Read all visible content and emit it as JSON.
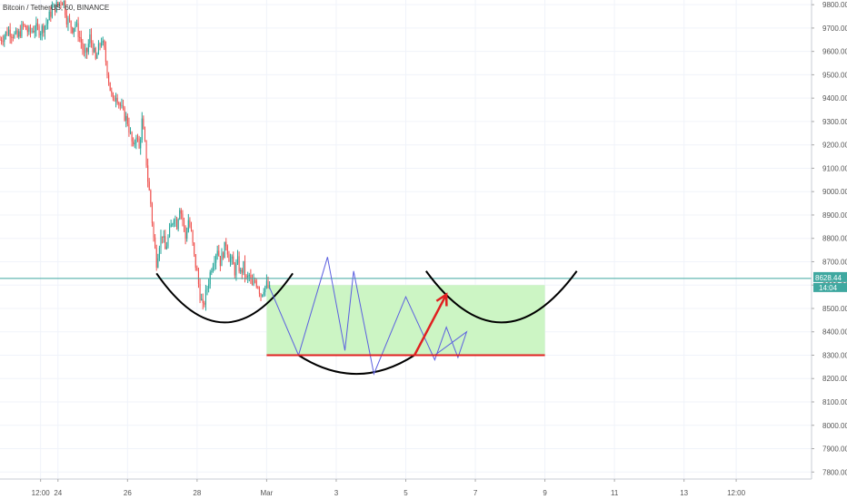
{
  "chart_data": {
    "type": "candlestick",
    "symbol_label": "Bitcoin / TetherUS, 60, BINANCE",
    "y_ticks": [
      9800,
      9700,
      9600,
      9500,
      9400,
      9300,
      9200,
      9100,
      9000,
      8900,
      8800,
      8700,
      8600,
      8500,
      8400,
      8300,
      8200,
      8100,
      8000,
      7900,
      7800
    ],
    "y_tick_labels": [
      "9800.00",
      "9700.00",
      "9600.00",
      "9500.00",
      "9400.00",
      "9300.00",
      "9200.00",
      "9100.00",
      "9000.00",
      "8900.00",
      "8800.00",
      "8700.00",
      "8600.00",
      "8500.00",
      "8400.00",
      "8300.00",
      "8200.00",
      "8100.00",
      "8000.00",
      "7900.00",
      "7800.00"
    ],
    "ylim": [
      7770,
      9820
    ],
    "x_tick_labels": [
      "12:00",
      "24",
      "26",
      "28",
      "Mar",
      "3",
      "5",
      "7",
      "9",
      "11",
      "13",
      "12:00"
    ],
    "x_tick_hours": [
      -12,
      0,
      48,
      96,
      144,
      192,
      240,
      288,
      336,
      384,
      432,
      468
    ],
    "xlim_hours": [
      -40,
      520
    ],
    "current_price": 8628.44,
    "current_price_label": "8628.44",
    "countdown_label": "14:04",
    "price_path": [
      [
        -40,
        9650
      ],
      [
        -34,
        9690
      ],
      [
        -28,
        9660
      ],
      [
        -24,
        9710
      ],
      [
        -20,
        9680
      ],
      [
        -16,
        9700
      ],
      [
        -12,
        9690
      ],
      [
        -8,
        9720
      ],
      [
        -4,
        9780
      ],
      [
        0,
        9800
      ],
      [
        2,
        9820
      ],
      [
        4,
        9810
      ],
      [
        6,
        9740
      ],
      [
        10,
        9700
      ],
      [
        12,
        9720
      ],
      [
        16,
        9640
      ],
      [
        18,
        9580
      ],
      [
        20,
        9600
      ],
      [
        22,
        9660
      ],
      [
        24,
        9620
      ],
      [
        26,
        9560
      ],
      [
        28,
        9610
      ],
      [
        30,
        9650
      ],
      [
        32,
        9600
      ],
      [
        34,
        9520
      ],
      [
        36,
        9440
      ],
      [
        38,
        9380
      ],
      [
        40,
        9420
      ],
      [
        44,
        9350
      ],
      [
        48,
        9300
      ],
      [
        50,
        9240
      ],
      [
        52,
        9180
      ],
      [
        54,
        9250
      ],
      [
        56,
        9180
      ],
      [
        58,
        9300
      ],
      [
        60,
        9200
      ],
      [
        62,
        9050
      ],
      [
        64,
        8950
      ],
      [
        66,
        8800
      ],
      [
        68,
        8700
      ],
      [
        70,
        8780
      ],
      [
        72,
        8820
      ],
      [
        74,
        8750
      ],
      [
        76,
        8800
      ],
      [
        78,
        8850
      ],
      [
        80,
        8900
      ],
      [
        82,
        8860
      ],
      [
        84,
        8940
      ],
      [
        86,
        8880
      ],
      [
        88,
        8800
      ],
      [
        90,
        8880
      ],
      [
        92,
        8820
      ],
      [
        94,
        8720
      ],
      [
        96,
        8650
      ],
      [
        98,
        8560
      ],
      [
        100,
        8500
      ],
      [
        102,
        8560
      ],
      [
        104,
        8620
      ],
      [
        106,
        8680
      ],
      [
        108,
        8720
      ],
      [
        110,
        8760
      ],
      [
        112,
        8700
      ],
      [
        114,
        8740
      ],
      [
        116,
        8780
      ],
      [
        118,
        8720
      ],
      [
        120,
        8700
      ],
      [
        122,
        8660
      ],
      [
        124,
        8700
      ],
      [
        126,
        8650
      ],
      [
        128,
        8680
      ],
      [
        130,
        8620
      ],
      [
        132,
        8640
      ],
      [
        134,
        8590
      ],
      [
        136,
        8620
      ],
      [
        138,
        8600
      ],
      [
        140,
        8560
      ],
      [
        142,
        8590
      ],
      [
        144,
        8600
      ],
      [
        146,
        8580
      ]
    ],
    "annotations": {
      "target_zone": {
        "x_start": 144,
        "x_end": 336,
        "y_low": 8300,
        "y_high": 8600,
        "color": "#ccf5c4"
      },
      "support_line": {
        "x_start": 144,
        "x_end": 336,
        "y": 8300,
        "color": "#e02020"
      },
      "bowl_1": {
        "x_start": 68,
        "x_end": 162,
        "y_top": 8650,
        "y_bottom": 8440,
        "color": "#000000"
      },
      "bowl_2": {
        "x_start": 166,
        "x_end": 246,
        "y_top": 8300,
        "y_bottom": 8220,
        "color": "#000000"
      },
      "bowl_3": {
        "x_start": 254,
        "x_end": 358,
        "y_top": 8660,
        "y_bottom": 8440,
        "color": "#000000"
      },
      "zigzag": {
        "color": "#5b5fe0",
        "points": [
          [
            146,
            8590
          ],
          [
            166,
            8300
          ],
          [
            186,
            8720
          ],
          [
            198,
            8320
          ],
          [
            204,
            8660
          ],
          [
            218,
            8220
          ],
          [
            240,
            8550
          ],
          [
            260,
            8280
          ],
          [
            268,
            8420
          ],
          [
            276,
            8290
          ],
          [
            282,
            8400
          ],
          [
            260,
            8300
          ]
        ]
      },
      "arrow": {
        "from": [
          246,
          8300
        ],
        "to": [
          268,
          8560
        ],
        "color": "#e02020"
      }
    },
    "colors": {
      "up": "#26a69a",
      "down": "#ef5350",
      "grid": "#f0f3fa",
      "price_line": "#3fa8a0"
    }
  }
}
